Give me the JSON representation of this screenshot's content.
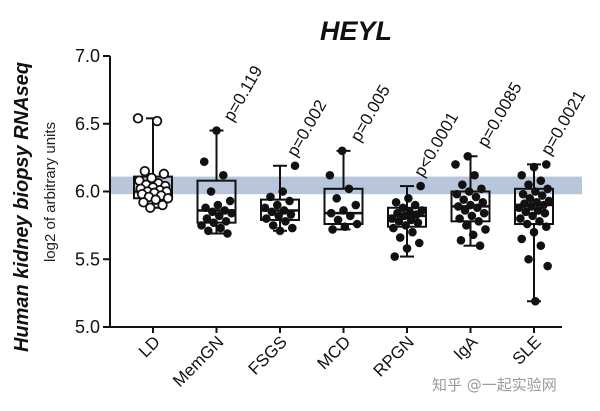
{
  "chart_data": {
    "type": "box",
    "title": "HEYL",
    "ylabel": "Human kidney biopsy RNAseq",
    "ylabel_sub": "log2 of arbitrary units",
    "ylim": [
      5.0,
      7.0
    ],
    "yticks": [
      "5.0",
      "5.5",
      "6.0",
      "6.5",
      "7.0"
    ],
    "reference_band": [
      5.98,
      6.11
    ],
    "reference_band_color": "#b8c6dc",
    "grid": false,
    "categories": [
      "LD",
      "MemGN",
      "FSGS",
      "MCD",
      "RPGN",
      "IgA",
      "SLE"
    ],
    "pvalues": [
      "",
      "p=0.119",
      "p=0.002",
      "p=0.005",
      "p<0.0001",
      "p=0.0085",
      "p=0.0021"
    ],
    "boxes": [
      {
        "min": 5.88,
        "q1": 5.95,
        "median": 6.0,
        "q3": 6.11,
        "max": 6.54
      },
      {
        "min": 5.69,
        "q1": 5.77,
        "median": 5.86,
        "q3": 6.08,
        "max": 6.45
      },
      {
        "min": 5.71,
        "q1": 5.79,
        "median": 5.86,
        "q3": 5.94,
        "max": 6.19
      },
      {
        "min": 5.72,
        "q1": 5.76,
        "median": 5.84,
        "q3": 6.02,
        "max": 6.3
      },
      {
        "min": 5.52,
        "q1": 5.74,
        "median": 5.82,
        "q3": 5.88,
        "max": 6.04
      },
      {
        "min": 5.6,
        "q1": 5.78,
        "median": 5.89,
        "q3": 6.0,
        "max": 6.26
      },
      {
        "min": 5.19,
        "q1": 5.76,
        "median": 5.9,
        "q3": 6.02,
        "max": 6.2
      }
    ],
    "points": [
      [
        6.54,
        6.52,
        6.15,
        6.13,
        6.1,
        6.08,
        6.06,
        6.05,
        6.04,
        6.03,
        6.02,
        6.01,
        6.0,
        6.0,
        5.99,
        5.98,
        5.97,
        5.96,
        5.95,
        5.94,
        5.92,
        5.9,
        5.88
      ],
      [
        6.45,
        6.22,
        6.12,
        6.0,
        5.93,
        5.9,
        5.88,
        5.86,
        5.85,
        5.84,
        5.82,
        5.8,
        5.78,
        5.77,
        5.75,
        5.73,
        5.71,
        5.69
      ],
      [
        6.19,
        6.0,
        5.96,
        5.93,
        5.9,
        5.88,
        5.86,
        5.85,
        5.83,
        5.82,
        5.8,
        5.78,
        5.75,
        5.73,
        5.71
      ],
      [
        6.3,
        6.12,
        6.02,
        5.95,
        5.9,
        5.86,
        5.84,
        5.82,
        5.79,
        5.76,
        5.74,
        5.72
      ],
      [
        6.04,
        5.95,
        5.92,
        5.9,
        5.88,
        5.86,
        5.85,
        5.84,
        5.83,
        5.82,
        5.8,
        5.79,
        5.78,
        5.77,
        5.75,
        5.73,
        5.7,
        5.66,
        5.62,
        5.58,
        5.52
      ],
      [
        6.26,
        6.2,
        6.12,
        6.05,
        6.02,
        6.0,
        5.98,
        5.96,
        5.94,
        5.92,
        5.9,
        5.89,
        5.88,
        5.86,
        5.84,
        5.82,
        5.8,
        5.78,
        5.75,
        5.72,
        5.68,
        5.64,
        5.6
      ],
      [
        6.2,
        6.18,
        6.12,
        6.08,
        6.05,
        6.02,
        6.0,
        5.98,
        5.97,
        5.95,
        5.93,
        5.92,
        5.91,
        5.9,
        5.89,
        5.88,
        5.86,
        5.85,
        5.84,
        5.82,
        5.8,
        5.78,
        5.76,
        5.74,
        5.7,
        5.65,
        5.6,
        5.5,
        5.45,
        5.19
      ]
    ],
    "ld_point_fill": "#ffffff",
    "point_color": "#111111"
  },
  "watermark": "知乎 @一起实验网"
}
